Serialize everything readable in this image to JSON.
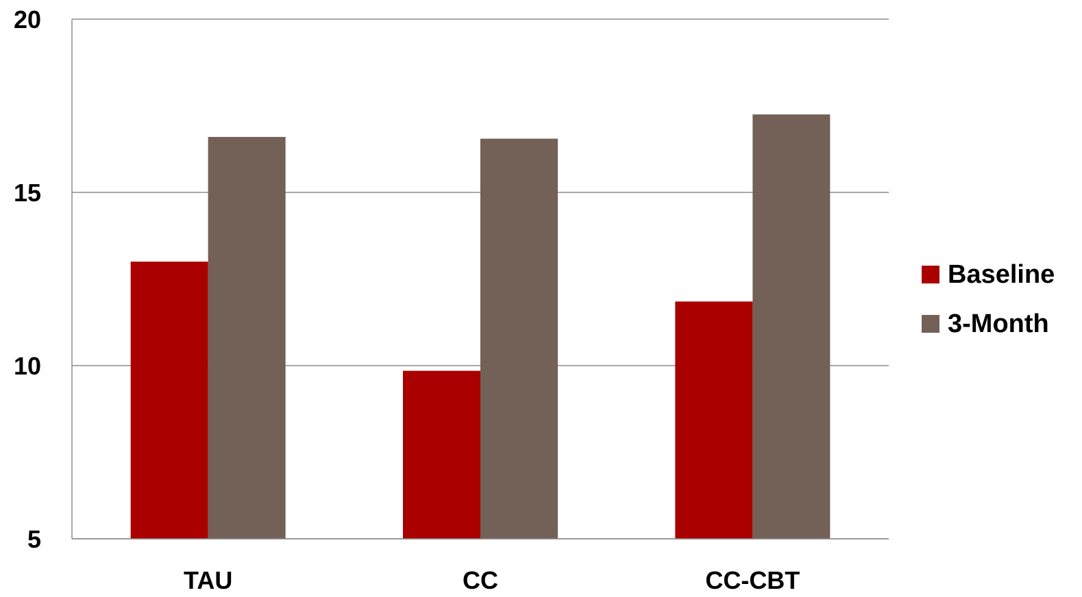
{
  "chart_data": {
    "type": "bar",
    "title": "",
    "xlabel": "",
    "ylabel": "",
    "categories": [
      "TAU",
      "CC",
      "CC-CBT"
    ],
    "series": [
      {
        "name": "Baseline",
        "color": "#aa0000",
        "values": [
          13.0,
          9.85,
          11.85
        ]
      },
      {
        "name": "3-Month",
        "color": "#736056",
        "values": [
          16.6,
          16.55,
          17.25
        ]
      }
    ],
    "ylim": [
      5,
      20
    ],
    "yticks": [
      "5",
      "10",
      "15",
      "20"
    ],
    "grid": true,
    "legend_position": "right"
  }
}
